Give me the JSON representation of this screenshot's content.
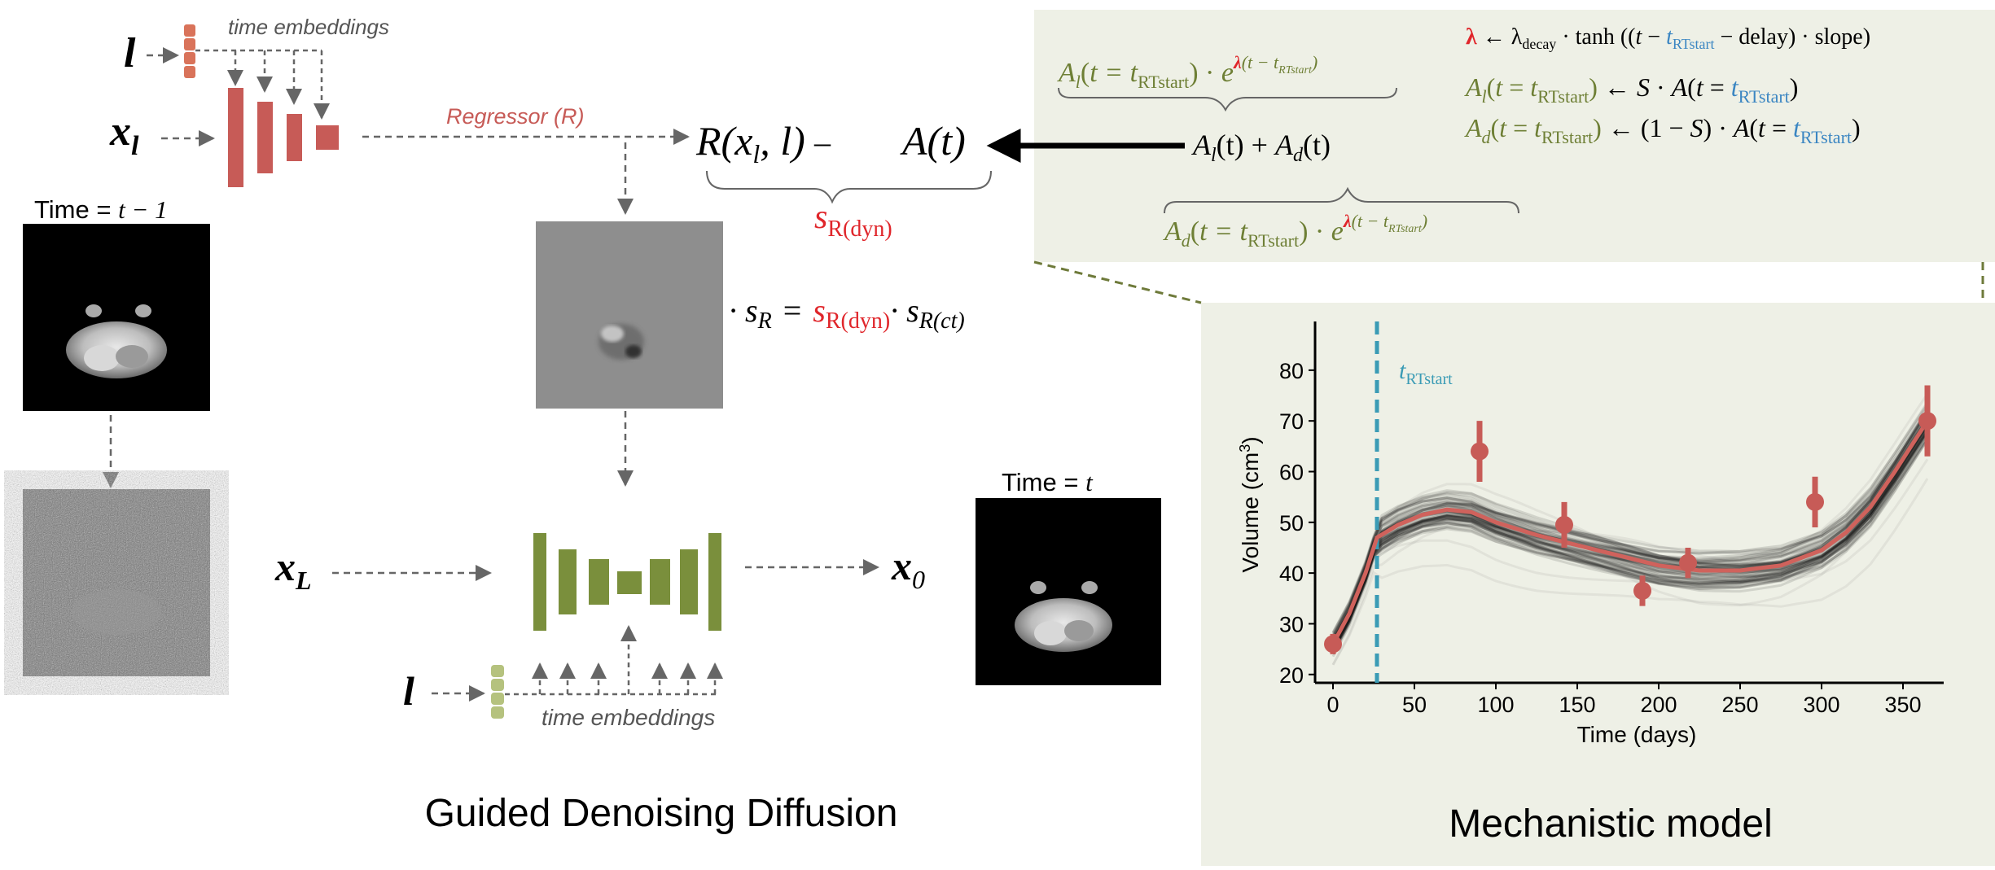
{
  "colors": {
    "red": "#c75b57",
    "brightRed": "#e0262b",
    "green": "#7a8f3c",
    "lightGreen": "#b5c27e",
    "blue": "#3b86c2",
    "teal": "#3a9bb5",
    "panelBg": "#eef0e6",
    "arrowGray": "#666666"
  },
  "labels": {
    "l_top": "l",
    "x_l": "x",
    "x_l_sub": "l",
    "time_emb_top": "time embeddings",
    "regressor": "Regressor (R)",
    "R_expr": "R(x",
    "R_expr_sub": "l",
    "R_expr_rest": ", l)",
    "minus": "–",
    "A_t": "A(t)",
    "s_R": "s",
    "s_R_sub": "R(dyn)",
    "time_t_minus_1": "Time = ",
    "time_t_minus_1_var": "t − 1",
    "dot_sR": "· s",
    "dot_sR_sub": "R",
    "eq": "=",
    "s_dyn": "s",
    "s_dyn_sub": "R(dyn)",
    "dot2": "· s",
    "s_ct_sub": "R(ct)",
    "x_L": "x",
    "x_L_sub": "L",
    "x_0": "x",
    "x_0_sub": "0",
    "time_t": "Time = ",
    "time_t_var": "t",
    "l_bottom": "l",
    "time_emb_bottom": "time embeddings",
    "caption_left": "Guided Denoising Diffusion",
    "caption_right": "Mechanistic model"
  },
  "formulas": {
    "Al_decay": "A_l(t = t_RTstart) · e^{λ(t − t_RTstart)}",
    "Al_plus_Ad": "A_l(t) + A_d(t)",
    "Ad_decay": "A_d(t = t_RTstart) · e^{λ(t − t_RTstart)}",
    "lambda_eq": "λ ← λ_decay · tanh((t − t_RTstart − delay) · slope)",
    "Al_eq": "A_l(t = t_RTstart) ← S · A(t = t_RTstart)",
    "Ad_eq": "A_d(t = t_RTstart) ← (1 − S) · A(t = t_RTstart)"
  },
  "chart_data": {
    "type": "line",
    "xlabel": "Time (days)",
    "ylabel": "Volume (cm",
    "ylabel_sup": "3",
    "ylabel_end": ")",
    "xlim": [
      -5,
      375
    ],
    "ylim": [
      19,
      88
    ],
    "xticks": [
      0,
      50,
      100,
      150,
      200,
      250,
      300,
      350
    ],
    "yticks": [
      20,
      30,
      40,
      50,
      60,
      70,
      80
    ],
    "vline": {
      "x": 27,
      "label": "t",
      "label_sub": "RTstart"
    },
    "fit_curve": {
      "x": [
        0,
        10,
        20,
        27,
        40,
        55,
        70,
        85,
        100,
        125,
        150,
        175,
        200,
        225,
        250,
        275,
        300,
        315,
        330,
        345,
        355,
        365
      ],
      "y": [
        26,
        32,
        40,
        47,
        49.5,
        51.5,
        52.5,
        52,
        50,
        47.5,
        45.5,
        43.5,
        41.5,
        40.5,
        40.5,
        41.5,
        44.5,
        48,
        53,
        60,
        65,
        70
      ]
    },
    "observations": {
      "x": [
        0,
        90,
        142,
        190,
        218,
        296,
        365
      ],
      "y": [
        26,
        64,
        49.5,
        36.5,
        42,
        54,
        70
      ],
      "err": [
        2,
        6,
        4.5,
        3,
        3,
        5,
        7
      ]
    }
  }
}
